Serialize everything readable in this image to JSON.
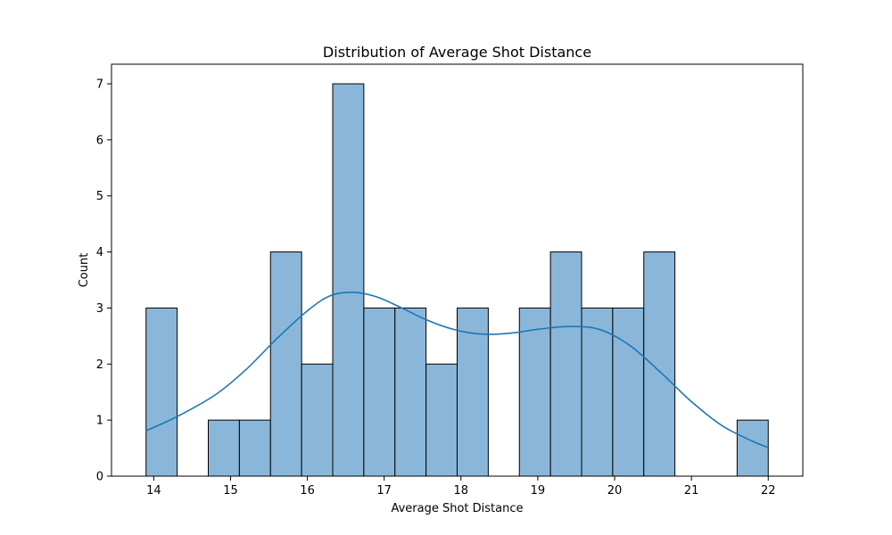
{
  "chart_data": {
    "type": "bar",
    "title": "Distribution of Average Shot Distance",
    "xlabel": "Average Shot Distance",
    "ylabel": "Count",
    "xlim": [
      13.45,
      22.45
    ],
    "ylim": [
      0,
      7.35
    ],
    "x_ticks": [
      14,
      15,
      16,
      17,
      18,
      19,
      20,
      21,
      22
    ],
    "y_ticks": [
      0,
      1,
      2,
      3,
      4,
      5,
      6,
      7
    ],
    "bin_start": 13.9,
    "bin_width": 0.405,
    "bins": [
      {
        "start": 13.9,
        "count": 3
      },
      {
        "start": 14.305,
        "count": 0
      },
      {
        "start": 14.71,
        "count": 1
      },
      {
        "start": 15.115,
        "count": 1
      },
      {
        "start": 15.52,
        "count": 4
      },
      {
        "start": 15.925,
        "count": 2
      },
      {
        "start": 16.33,
        "count": 7
      },
      {
        "start": 16.735,
        "count": 3
      },
      {
        "start": 17.14,
        "count": 3
      },
      {
        "start": 17.545,
        "count": 2
      },
      {
        "start": 17.95,
        "count": 3
      },
      {
        "start": 18.355,
        "count": 0
      },
      {
        "start": 18.76,
        "count": 3
      },
      {
        "start": 19.165,
        "count": 4
      },
      {
        "start": 19.57,
        "count": 3
      },
      {
        "start": 19.975,
        "count": 3
      },
      {
        "start": 20.38,
        "count": 4
      },
      {
        "start": 20.785,
        "count": 0
      },
      {
        "start": 21.19,
        "count": 0
      },
      {
        "start": 21.595,
        "count": 1
      }
    ],
    "kde": {
      "x": [
        13.9,
        14.3,
        14.8,
        15.2,
        15.6,
        16.0,
        16.3,
        16.6,
        16.9,
        17.2,
        17.5,
        17.8,
        18.1,
        18.4,
        18.7,
        19.0,
        19.4,
        19.8,
        20.2,
        20.6,
        21.0,
        21.4,
        21.8,
        22.0
      ],
      "y": [
        0.81,
        1.06,
        1.45,
        1.9,
        2.45,
        2.95,
        3.22,
        3.28,
        3.2,
        3.02,
        2.82,
        2.66,
        2.56,
        2.53,
        2.56,
        2.62,
        2.67,
        2.62,
        2.33,
        1.85,
        1.33,
        0.9,
        0.62,
        0.51
      ]
    },
    "colors": {
      "bar_fill": "#8ab7d9",
      "bar_edge": "#000000",
      "kde_line": "#1f77b4"
    },
    "grid": false,
    "legend": "none"
  }
}
